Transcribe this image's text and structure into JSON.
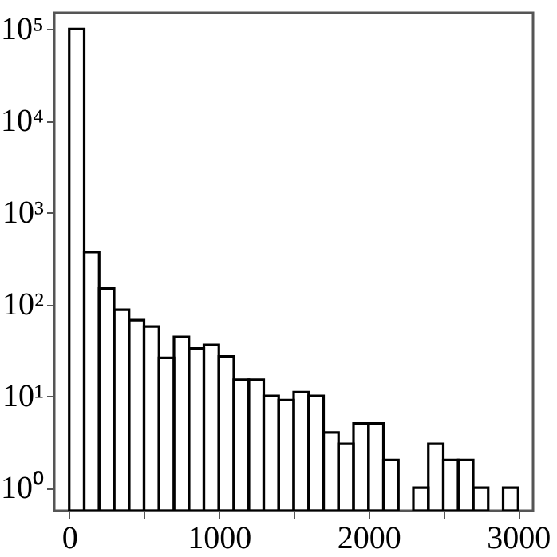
{
  "chart_data": {
    "type": "histogram",
    "bins": [
      0,
      100,
      200,
      300,
      400,
      500,
      600,
      700,
      800,
      900,
      1000,
      1100,
      1200,
      1300,
      1400,
      1500,
      1600,
      1700,
      1800,
      1900,
      2000,
      2100,
      2200,
      2300,
      2400,
      2500,
      2600,
      2700,
      2800,
      2900,
      3000
    ],
    "values": [
      100000,
      370,
      148,
      87,
      67,
      57,
      26,
      44,
      33,
      36,
      27,
      15,
      15,
      10,
      9,
      11,
      10,
      4,
      3,
      5,
      5,
      2,
      null,
      1,
      3,
      2,
      2,
      1,
      null,
      1
    ],
    "color": "#000000",
    "log": "y",
    "xlim": [
      -100,
      3100
    ],
    "xticks": [
      0,
      {
        "value": 500,
        "label": null
      },
      1000,
      {
        "value": 1500,
        "label": null
      },
      2000,
      {
        "value": 2500,
        "label": null
      },
      3000
    ],
    "ylim": [
      0.56,
      150000
    ],
    "yticks": [
      {
        "value": 1,
        "label": "10⁰"
      },
      {
        "value": 10,
        "label": "10¹"
      },
      {
        "value": 100,
        "label": "10²"
      },
      {
        "value": 1000,
        "label": "10³"
      },
      {
        "value": 10000,
        "label": "10⁴"
      },
      {
        "value": 100000,
        "label": "10⁵"
      }
    ],
    "grid": false
  }
}
